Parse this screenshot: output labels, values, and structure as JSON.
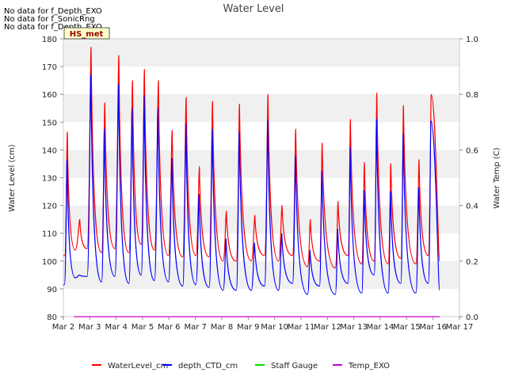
{
  "no_data_messages": [
    "No data for f_Depth_EXO",
    "No data for f_SonicRng",
    "No data for f_Depth_EXO"
  ],
  "badge": "HS_met",
  "colors": {
    "waterlevel": "#ff0000",
    "depth": "#0000ff",
    "staff": "#00dd00",
    "temp": "#cc00cc",
    "band": "#f0f0f0",
    "badge_bg": "#ffffcc",
    "badge_text": "#990000"
  },
  "chart_data": {
    "type": "line",
    "title": "Water Level",
    "ylabel": "Water Level (cm)",
    "y2label": "Water Temp (C)",
    "xlabel": "",
    "ylim": [
      80,
      180
    ],
    "y2lim": [
      0.0,
      1.0
    ],
    "xlim": [
      2,
      17
    ],
    "y_ticks": [
      "80",
      "90",
      "100",
      "110",
      "120",
      "130",
      "140",
      "150",
      "160",
      "170",
      "180"
    ],
    "y2_ticks": [
      "0.0",
      "0.2",
      "0.4",
      "0.6",
      "0.8",
      "1.0"
    ],
    "x_ticks": [
      "Mar 2",
      "Mar 3",
      "Mar 4",
      "Mar 5",
      "Mar 6",
      "Mar 7",
      "Mar 8",
      "Mar 9",
      "Mar 10",
      "Mar 11",
      "Mar 12",
      "Mar 13",
      "Mar 14",
      "Mar 15",
      "Mar 16",
      "Mar 17"
    ],
    "legend": [
      "WaterLevel_cm",
      "depth_CTD_cm",
      "Staff Gauge",
      "Temp_EXO"
    ],
    "legend_position": "bottom",
    "grid_bands": true,
    "series": [
      {
        "name": "WaterLevel_cm",
        "peaks": [
          [
            2.15,
            146.5
          ],
          [
            2.62,
            115
          ],
          [
            3.05,
            177
          ],
          [
            3.57,
            157
          ],
          [
            4.1,
            174
          ],
          [
            4.62,
            165
          ],
          [
            5.07,
            169
          ],
          [
            5.6,
            165
          ],
          [
            6.12,
            147
          ],
          [
            6.65,
            159
          ],
          [
            7.15,
            134
          ],
          [
            7.65,
            157.5
          ],
          [
            8.17,
            118
          ],
          [
            8.67,
            156.5
          ],
          [
            9.25,
            116.5
          ],
          [
            9.75,
            160
          ],
          [
            10.28,
            120
          ],
          [
            10.8,
            147.5
          ],
          [
            11.35,
            115
          ],
          [
            11.8,
            142.5
          ],
          [
            12.4,
            121.5
          ],
          [
            12.87,
            151
          ],
          [
            13.4,
            135.5
          ],
          [
            13.87,
            160.5
          ],
          [
            14.4,
            135
          ],
          [
            14.88,
            156
          ],
          [
            15.47,
            136.5
          ],
          [
            15.93,
            160
          ],
          [
            16.25,
            100
          ]
        ],
        "troughs": [
          [
            2.05,
            102
          ],
          [
            2.45,
            104
          ],
          [
            2.9,
            104.5
          ],
          [
            3.45,
            103
          ],
          [
            3.95,
            104.5
          ],
          [
            4.48,
            103
          ],
          [
            4.95,
            106
          ],
          [
            5.45,
            104
          ],
          [
            5.98,
            102
          ],
          [
            6.52,
            101.5
          ],
          [
            7.02,
            102
          ],
          [
            7.52,
            101.5
          ],
          [
            8.05,
            100
          ],
          [
            8.55,
            100
          ],
          [
            9.12,
            100
          ],
          [
            9.62,
            102
          ],
          [
            10.15,
            100
          ],
          [
            10.68,
            102
          ],
          [
            11.25,
            98
          ],
          [
            11.7,
            100
          ],
          [
            12.3,
            97.5
          ],
          [
            12.78,
            102
          ],
          [
            13.3,
            99
          ],
          [
            13.77,
            100
          ],
          [
            14.3,
            99
          ],
          [
            14.78,
            101
          ],
          [
            15.35,
            99
          ],
          [
            15.82,
            102
          ]
        ]
      },
      {
        "name": "depth_CTD_cm",
        "peaks": [
          [
            2.14,
            136.5
          ],
          [
            2.6,
            95
          ],
          [
            3.04,
            167
          ],
          [
            3.55,
            147.5
          ],
          [
            4.09,
            163.5
          ],
          [
            4.6,
            155
          ],
          [
            5.06,
            159.5
          ],
          [
            5.58,
            155
          ],
          [
            6.11,
            137
          ],
          [
            6.64,
            149.5
          ],
          [
            7.14,
            124
          ],
          [
            7.64,
            147.5
          ],
          [
            8.16,
            108
          ],
          [
            8.66,
            146.5
          ],
          [
            9.24,
            106.5
          ],
          [
            9.74,
            150.5
          ],
          [
            10.27,
            110
          ],
          [
            10.79,
            138
          ],
          [
            11.34,
            104
          ],
          [
            11.79,
            132.5
          ],
          [
            12.39,
            111.5
          ],
          [
            12.86,
            141
          ],
          [
            13.39,
            125.5
          ],
          [
            13.86,
            151
          ],
          [
            14.39,
            125
          ],
          [
            14.87,
            146
          ],
          [
            15.46,
            126.5
          ],
          [
            15.92,
            150.5
          ],
          [
            16.25,
            89.5
          ]
        ],
        "troughs": [
          [
            2.04,
            91.5
          ],
          [
            2.45,
            94
          ],
          [
            2.9,
            94.5
          ],
          [
            3.45,
            92.5
          ],
          [
            3.95,
            94.5
          ],
          [
            4.48,
            92
          ],
          [
            4.95,
            95
          ],
          [
            5.45,
            93
          ],
          [
            5.98,
            92.5
          ],
          [
            6.52,
            91
          ],
          [
            7.02,
            91.5
          ],
          [
            7.52,
            90.5
          ],
          [
            8.05,
            89.5
          ],
          [
            8.55,
            89.5
          ],
          [
            9.12,
            89.5
          ],
          [
            9.62,
            91
          ],
          [
            10.15,
            89.5
          ],
          [
            10.68,
            92
          ],
          [
            11.25,
            88
          ],
          [
            11.7,
            91
          ],
          [
            12.3,
            88
          ],
          [
            12.78,
            92
          ],
          [
            13.3,
            88.5
          ],
          [
            13.77,
            95
          ],
          [
            14.3,
            88.5
          ],
          [
            14.78,
            92
          ],
          [
            15.35,
            88.5
          ],
          [
            15.82,
            92
          ]
        ]
      },
      {
        "name": "Temp_EXO",
        "axis": "right",
        "points": [
          [
            2.4,
            0.0
          ],
          [
            16.25,
            0.0
          ]
        ]
      }
    ]
  }
}
